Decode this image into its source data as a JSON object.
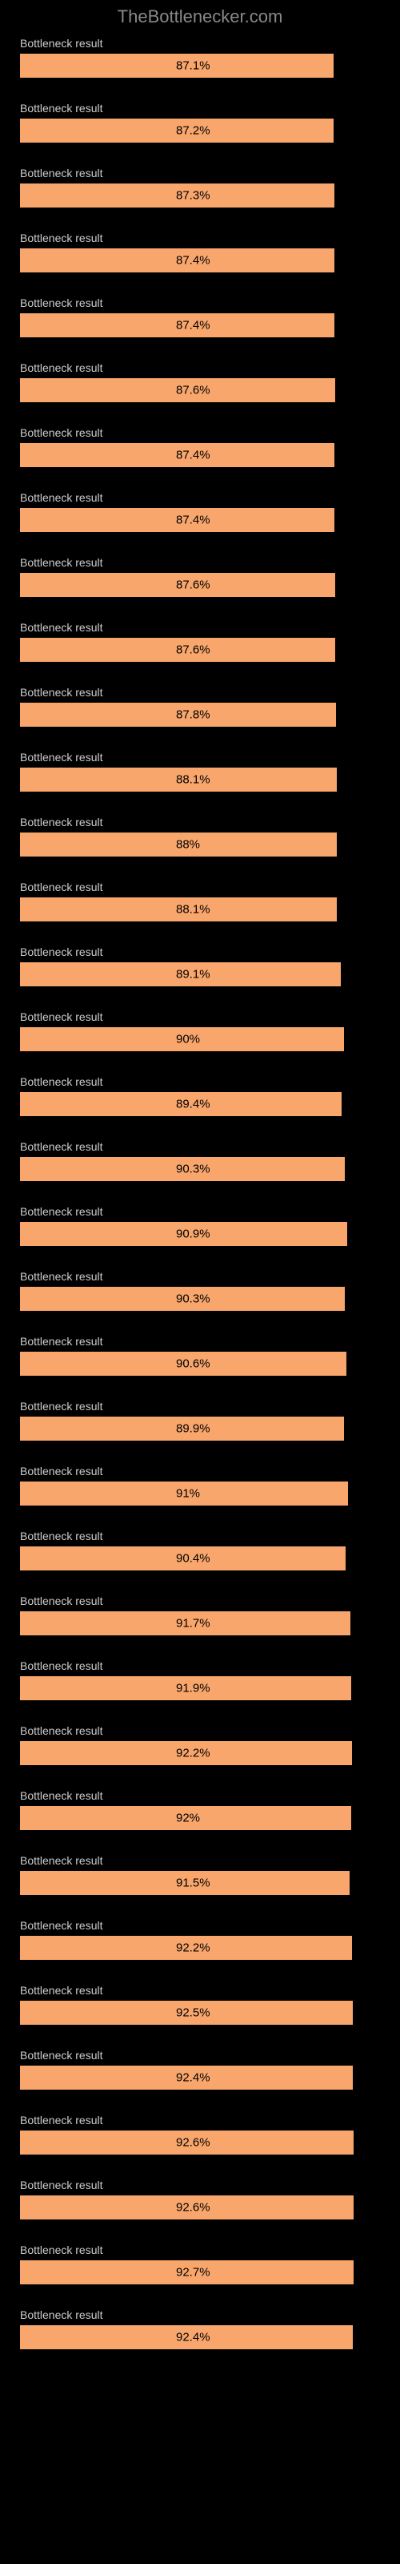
{
  "header": {
    "title": "TheBottlenecker.com"
  },
  "chart": {
    "type": "bar",
    "bar_color": "#f8a66c",
    "background_color": "#000000",
    "label_color": "#cccccc",
    "value_color": "#000000",
    "header_color": "#888888",
    "max_value": 100,
    "rows": [
      {
        "label": "Bottleneck result",
        "value": 87.1,
        "display": "87.1%"
      },
      {
        "label": "Bottleneck result",
        "value": 87.2,
        "display": "87.2%"
      },
      {
        "label": "Bottleneck result",
        "value": 87.3,
        "display": "87.3%"
      },
      {
        "label": "Bottleneck result",
        "value": 87.4,
        "display": "87.4%"
      },
      {
        "label": "Bottleneck result",
        "value": 87.4,
        "display": "87.4%"
      },
      {
        "label": "Bottleneck result",
        "value": 87.6,
        "display": "87.6%"
      },
      {
        "label": "Bottleneck result",
        "value": 87.4,
        "display": "87.4%"
      },
      {
        "label": "Bottleneck result",
        "value": 87.4,
        "display": "87.4%"
      },
      {
        "label": "Bottleneck result",
        "value": 87.6,
        "display": "87.6%"
      },
      {
        "label": "Bottleneck result",
        "value": 87.6,
        "display": "87.6%"
      },
      {
        "label": "Bottleneck result",
        "value": 87.8,
        "display": "87.8%"
      },
      {
        "label": "Bottleneck result",
        "value": 88.1,
        "display": "88.1%"
      },
      {
        "label": "Bottleneck result",
        "value": 88,
        "display": "88%"
      },
      {
        "label": "Bottleneck result",
        "value": 88.1,
        "display": "88.1%"
      },
      {
        "label": "Bottleneck result",
        "value": 89.1,
        "display": "89.1%"
      },
      {
        "label": "Bottleneck result",
        "value": 90,
        "display": "90%"
      },
      {
        "label": "Bottleneck result",
        "value": 89.4,
        "display": "89.4%"
      },
      {
        "label": "Bottleneck result",
        "value": 90.3,
        "display": "90.3%"
      },
      {
        "label": "Bottleneck result",
        "value": 90.9,
        "display": "90.9%"
      },
      {
        "label": "Bottleneck result",
        "value": 90.3,
        "display": "90.3%"
      },
      {
        "label": "Bottleneck result",
        "value": 90.6,
        "display": "90.6%"
      },
      {
        "label": "Bottleneck result",
        "value": 89.9,
        "display": "89.9%"
      },
      {
        "label": "Bottleneck result",
        "value": 91,
        "display": "91%"
      },
      {
        "label": "Bottleneck result",
        "value": 90.4,
        "display": "90.4%"
      },
      {
        "label": "Bottleneck result",
        "value": 91.7,
        "display": "91.7%"
      },
      {
        "label": "Bottleneck result",
        "value": 91.9,
        "display": "91.9%"
      },
      {
        "label": "Bottleneck result",
        "value": 92.2,
        "display": "92.2%"
      },
      {
        "label": "Bottleneck result",
        "value": 92,
        "display": "92%"
      },
      {
        "label": "Bottleneck result",
        "value": 91.5,
        "display": "91.5%"
      },
      {
        "label": "Bottleneck result",
        "value": 92.2,
        "display": "92.2%"
      },
      {
        "label": "Bottleneck result",
        "value": 92.5,
        "display": "92.5%"
      },
      {
        "label": "Bottleneck result",
        "value": 92.4,
        "display": "92.4%"
      },
      {
        "label": "Bottleneck result",
        "value": 92.6,
        "display": "92.6%"
      },
      {
        "label": "Bottleneck result",
        "value": 92.6,
        "display": "92.6%"
      },
      {
        "label": "Bottleneck result",
        "value": 92.7,
        "display": "92.7%"
      },
      {
        "label": "Bottleneck result",
        "value": 92.4,
        "display": "92.4%"
      }
    ]
  }
}
